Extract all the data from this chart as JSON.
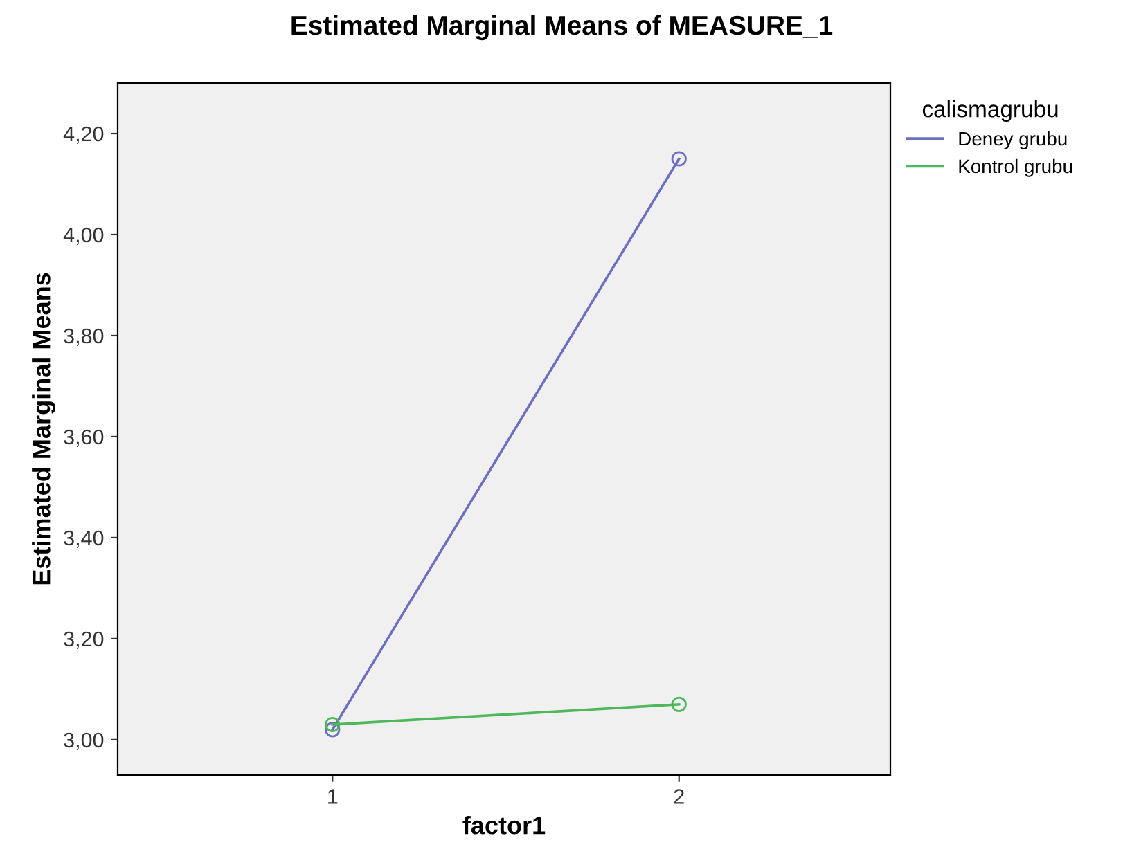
{
  "chart_data": {
    "type": "line",
    "title": "Estimated Marginal Means of MEASURE_1",
    "xlabel": "factor1",
    "ylabel": "Estimated Marginal Means",
    "legend_title": "calismagrubu",
    "categories": [
      "1",
      "2"
    ],
    "series": [
      {
        "name": "Deney grubu",
        "color": "#6b6fc0",
        "values": [
          3.02,
          4.15
        ]
      },
      {
        "name": "Kontrol grubu",
        "color": "#4cb85a",
        "values": [
          3.03,
          3.07
        ]
      }
    ],
    "ylim": [
      2.93,
      4.3
    ],
    "yticks": [
      {
        "value": 3.0,
        "label": "3,00"
      },
      {
        "value": 3.2,
        "label": "3,20"
      },
      {
        "value": 3.4,
        "label": "3,40"
      },
      {
        "value": 3.6,
        "label": "3,60"
      },
      {
        "value": 3.8,
        "label": "3,80"
      },
      {
        "value": 4.0,
        "label": "4,00"
      },
      {
        "value": 4.2,
        "label": "4,20"
      }
    ],
    "marker": "circle",
    "line_style": "solid",
    "grid": false,
    "legend": "right"
  }
}
